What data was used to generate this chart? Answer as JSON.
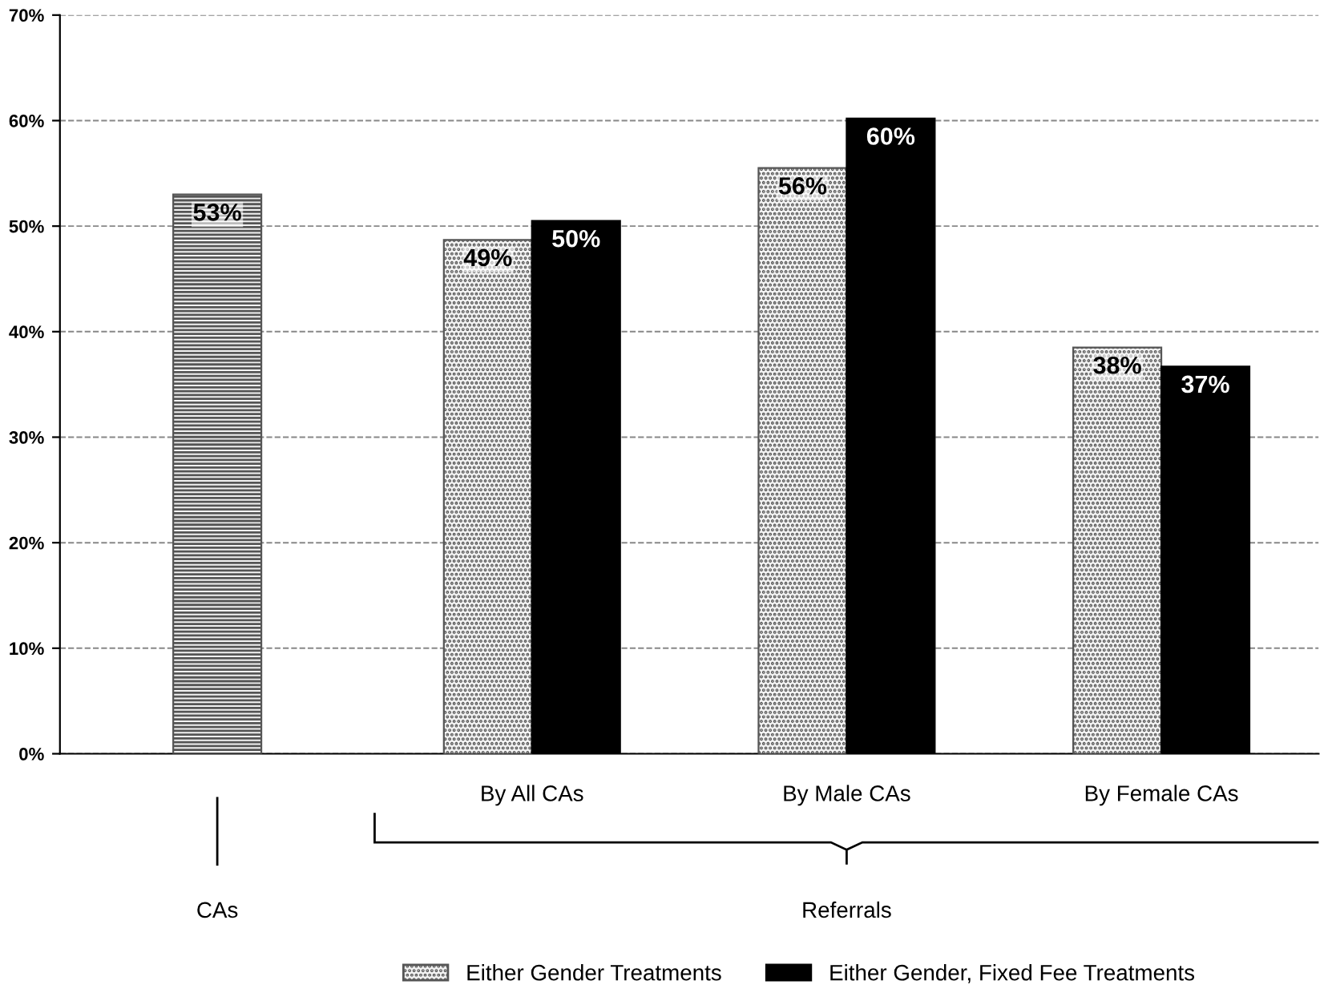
{
  "chart_data": {
    "type": "bar",
    "categories": [
      null,
      "By All CAs",
      "By Male CAs",
      "By Female CAs"
    ],
    "series": [
      {
        "color": "#555555",
        "values": [
          53,
          null,
          null,
          null
        ],
        "value_labels": [
          "53%",
          null,
          null,
          null
        ]
      },
      {
        "name": "Either Gender Treatments",
        "color": "#555555",
        "values": [
          null,
          48.7,
          55.5,
          38.5
        ],
        "value_labels": [
          null,
          "49%",
          "56%",
          "38%"
        ]
      },
      {
        "name": "Either Gender, Fixed Fee Treatments",
        "color": "#000000",
        "values": [
          null,
          50.5,
          60.2,
          36.7
        ],
        "value_labels": [
          null,
          "50%",
          "60%",
          "37%"
        ]
      }
    ],
    "annotations": [
      "CAs",
      "Referrals"
    ],
    "ylim": [
      0,
      70
    ],
    "yticks": [
      {
        "value": 0,
        "label": "0%"
      },
      {
        "value": 10,
        "label": "10%"
      },
      {
        "value": 20,
        "label": "20%"
      },
      {
        "value": 30,
        "label": "30%"
      },
      {
        "value": 40,
        "label": "40%"
      },
      {
        "value": 50,
        "label": "50%"
      },
      {
        "value": 60,
        "label": "60%"
      },
      {
        "value": 70,
        "label": "70%"
      }
    ],
    "grid": "y",
    "legend": "bottom"
  }
}
